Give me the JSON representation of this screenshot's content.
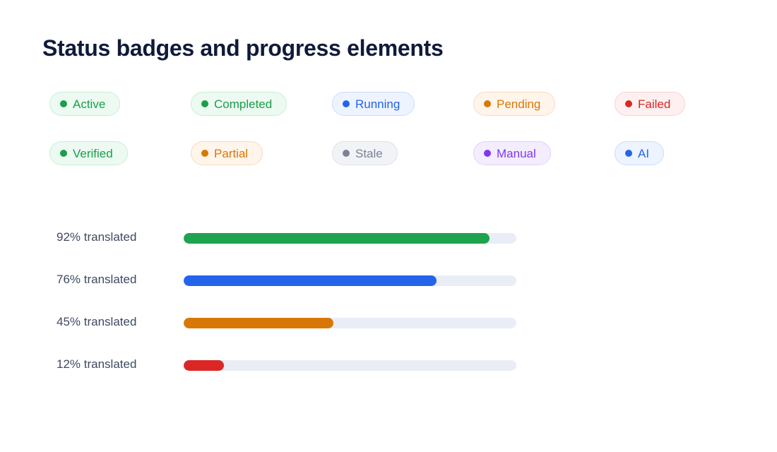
{
  "page": {
    "title": "Status badges and progress elements"
  },
  "badges": [
    {
      "label": "Active",
      "color": "#1a9e4b",
      "bg": "#ecfaf1",
      "border": "#c9eed7"
    },
    {
      "label": "Completed",
      "color": "#1a9e4b",
      "bg": "#ecfaf1",
      "border": "#c9eed7"
    },
    {
      "label": "Running",
      "color": "#2563eb",
      "bg": "#edf3ff",
      "border": "#cddcfa"
    },
    {
      "label": "Pending",
      "color": "#d97706",
      "bg": "#fff5ea",
      "border": "#f6dcc0"
    },
    {
      "label": "Failed",
      "color": "#dc2626",
      "bg": "#fef0f0",
      "border": "#f7d2d2"
    },
    {
      "label": "Verified",
      "color": "#1a9e4b",
      "bg": "#ecfaf1",
      "border": "#c9eed7"
    },
    {
      "label": "Partial",
      "color": "#d97706",
      "bg": "#fff5ea",
      "border": "#f6dcc0"
    },
    {
      "label": "Stale",
      "color": "#7a8294",
      "bg": "#f1f3f7",
      "border": "#dde1e8"
    },
    {
      "label": "Manual",
      "color": "#7c3aed",
      "bg": "#f4ecff",
      "border": "#e1d1fb"
    },
    {
      "label": "AI",
      "color": "#2563eb",
      "bg": "#edf3ff",
      "border": "#cddcfa"
    }
  ],
  "progress": [
    {
      "label": "92% translated",
      "percent": 92,
      "color": "#1ea34f"
    },
    {
      "label": "76% translated",
      "percent": 76,
      "color": "#2563eb"
    },
    {
      "label": "45% translated",
      "percent": 45,
      "color": "#d97706"
    },
    {
      "label": "12% translated",
      "percent": 12,
      "color": "#dc2626"
    }
  ],
  "colors": {
    "title": "#101a3a",
    "progress_label": "#3e4a60",
    "track": "#e9edf5"
  }
}
